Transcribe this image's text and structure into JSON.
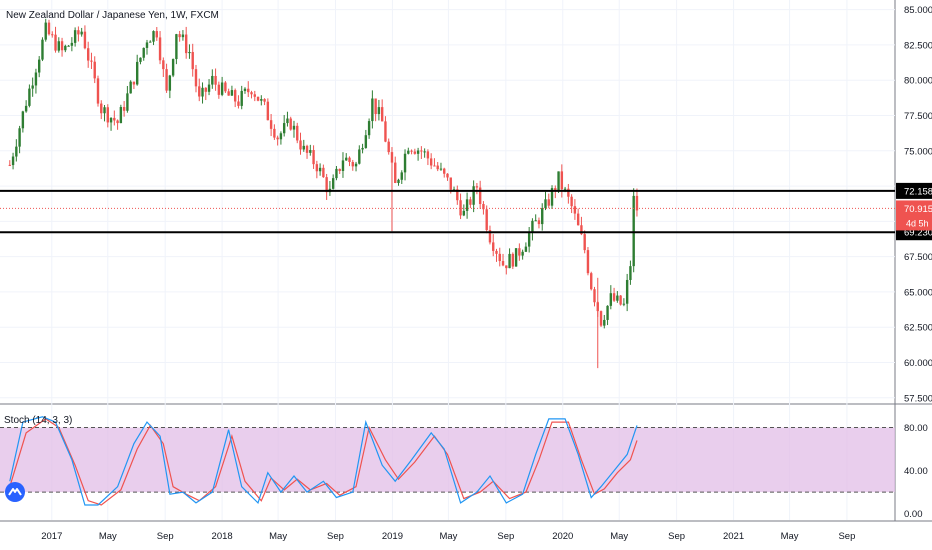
{
  "header": {
    "title": "New Zealand Dollar / Japanese Yen, 1W, FXCM"
  },
  "stoch": {
    "title": "Stoch (14, 3, 3)"
  },
  "chart_data": [
    {
      "type": "candlestick",
      "x_tick_labels": [
        "2017",
        "May",
        "Sep",
        "2018",
        "May",
        "Sep",
        "2019",
        "May",
        "Sep",
        "2020",
        "May",
        "Sep",
        "2021",
        "May",
        "Sep"
      ],
      "y_tick_labels": [
        "57.500",
        "60.000",
        "62.500",
        "65.000",
        "67.500",
        "70.000",
        "72.500",
        "75.000",
        "77.500",
        "80.000",
        "82.500",
        "85.000"
      ],
      "ylim": [
        57.2,
        85.4
      ],
      "x_start": "2016-10",
      "x_end": "2021-12",
      "price_points": [
        [
          "2016-10-03",
          74.0
        ],
        [
          "2016-11-07",
          78.5
        ],
        [
          "2016-12-19",
          83.5
        ],
        [
          "2017-01-23",
          82.0
        ],
        [
          "2017-03-06",
          83.5
        ],
        [
          "2017-04-17",
          78.0
        ],
        [
          "2017-05-22",
          77.0
        ],
        [
          "2017-06-19",
          79.5
        ],
        [
          "2017-07-24",
          83.0
        ],
        [
          "2017-08-14",
          83.5
        ],
        [
          "2017-09-04",
          79.0
        ],
        [
          "2017-09-25",
          83.5
        ],
        [
          "2017-10-23",
          82.0
        ],
        [
          "2017-11-13",
          78.5
        ],
        [
          "2017-12-11",
          80.0
        ],
        [
          "2018-01-08",
          79.0
        ],
        [
          "2018-02-05",
          78.5
        ],
        [
          "2018-03-05",
          79.5
        ],
        [
          "2018-04-02",
          78.0
        ],
        [
          "2018-04-30",
          76.0
        ],
        [
          "2018-05-28",
          77.0
        ],
        [
          "2018-06-25",
          75.0
        ],
        [
          "2018-07-23",
          74.0
        ],
        [
          "2018-08-20",
          72.0
        ],
        [
          "2018-09-17",
          74.5
        ],
        [
          "2018-10-15",
          74.0
        ],
        [
          "2018-11-19",
          78.5
        ],
        [
          "2018-12-10",
          77.0
        ],
        [
          "2019-01-07",
          72.5
        ],
        [
          "2019-02-04",
          75.5
        ],
        [
          "2019-03-04",
          75.0
        ],
        [
          "2019-04-01",
          74.0
        ],
        [
          "2019-05-06",
          72.5
        ],
        [
          "2019-06-03",
          70.5
        ],
        [
          "2019-07-01",
          72.5
        ],
        [
          "2019-07-29",
          69.0
        ],
        [
          "2019-08-26",
          67.0
        ],
        [
          "2019-09-23",
          67.5
        ],
        [
          "2019-10-28",
          69.5
        ],
        [
          "2019-11-25",
          71.0
        ],
        [
          "2019-12-23",
          73.0
        ],
        [
          "2020-01-20",
          71.0
        ],
        [
          "2020-02-17",
          68.0
        ],
        [
          "2020-03-02",
          65.5
        ],
        [
          "2020-03-23",
          63.0
        ],
        [
          "2020-04-13",
          64.5
        ],
        [
          "2020-05-11",
          64.0
        ],
        [
          "2020-05-25",
          67.0
        ],
        [
          "2020-06-01",
          71.5
        ],
        [
          "2020-06-08",
          70.9
        ]
      ],
      "horizontal_levels": [
        {
          "label": "72.158",
          "value": 72.158,
          "color": "#000000"
        },
        {
          "label": "69.230",
          "value": 69.23,
          "color": "#000000"
        }
      ],
      "last_price": {
        "label": "70.915",
        "value": 70.915,
        "color": "#ef5350"
      },
      "countdown": {
        "label": "4d 5h"
      },
      "candle_up_color": "#26a69a",
      "candle_up_color_dark": "#2e7d32",
      "candle_down_color": "#ef5350"
    },
    {
      "type": "line",
      "name": "Stoch (14, 3, 3)",
      "y_tick_labels": [
        "0.00",
        "40.00",
        "80.00"
      ],
      "ylim": [
        -5,
        100
      ],
      "upper_band": 80,
      "lower_band": 20,
      "band_fill_color": "#e1bee7",
      "k_color": "#2196f3",
      "d_color": "#ef5350",
      "k_points": [
        [
          "2016-10-03",
          30
        ],
        [
          "2016-10-31",
          85
        ],
        [
          "2016-12-12",
          90
        ],
        [
          "2017-01-09",
          85
        ],
        [
          "2017-02-13",
          50
        ],
        [
          "2017-03-13",
          8
        ],
        [
          "2017-04-10",
          8
        ],
        [
          "2017-05-22",
          25
        ],
        [
          "2017-06-26",
          65
        ],
        [
          "2017-07-24",
          85
        ],
        [
          "2017-08-21",
          72
        ],
        [
          "2017-09-11",
          18
        ],
        [
          "2017-10-09",
          20
        ],
        [
          "2017-11-06",
          10
        ],
        [
          "2017-12-11",
          20
        ],
        [
          "2018-01-15",
          78
        ],
        [
          "2018-02-12",
          25
        ],
        [
          "2018-03-19",
          10
        ],
        [
          "2018-04-09",
          38
        ],
        [
          "2018-05-07",
          20
        ],
        [
          "2018-06-04",
          35
        ],
        [
          "2018-07-02",
          20
        ],
        [
          "2018-08-06",
          30
        ],
        [
          "2018-09-03",
          15
        ],
        [
          "2018-10-08",
          20
        ],
        [
          "2018-11-05",
          85
        ],
        [
          "2018-12-10",
          45
        ],
        [
          "2019-01-07",
          30
        ],
        [
          "2019-02-11",
          50
        ],
        [
          "2019-03-25",
          75
        ],
        [
          "2019-04-22",
          60
        ],
        [
          "2019-05-27",
          10
        ],
        [
          "2019-07-01",
          20
        ],
        [
          "2019-07-29",
          35
        ],
        [
          "2019-09-02",
          10
        ],
        [
          "2019-10-07",
          18
        ],
        [
          "2019-11-04",
          55
        ],
        [
          "2019-12-02",
          88
        ],
        [
          "2020-01-06",
          88
        ],
        [
          "2020-02-03",
          55
        ],
        [
          "2020-03-02",
          15
        ],
        [
          "2020-03-23",
          25
        ],
        [
          "2020-04-20",
          40
        ],
        [
          "2020-05-18",
          55
        ],
        [
          "2020-06-08",
          82
        ]
      ],
      "d_points": [
        [
          "2016-10-03",
          25
        ],
        [
          "2016-11-07",
          75
        ],
        [
          "2016-12-19",
          88
        ],
        [
          "2017-01-16",
          80
        ],
        [
          "2017-02-20",
          45
        ],
        [
          "2017-03-20",
          12
        ],
        [
          "2017-04-17",
          8
        ],
        [
          "2017-05-29",
          22
        ],
        [
          "2017-07-03",
          60
        ],
        [
          "2017-07-31",
          82
        ],
        [
          "2017-08-28",
          65
        ],
        [
          "2017-09-18",
          25
        ],
        [
          "2017-10-16",
          18
        ],
        [
          "2017-11-13",
          12
        ],
        [
          "2017-12-18",
          25
        ],
        [
          "2018-01-22",
          72
        ],
        [
          "2018-02-19",
          30
        ],
        [
          "2018-03-26",
          12
        ],
        [
          "2018-04-16",
          33
        ],
        [
          "2018-05-14",
          22
        ],
        [
          "2018-06-11",
          32
        ],
        [
          "2018-07-09",
          22
        ],
        [
          "2018-08-13",
          28
        ],
        [
          "2018-09-10",
          17
        ],
        [
          "2018-10-15",
          25
        ],
        [
          "2018-11-12",
          80
        ],
        [
          "2018-12-17",
          50
        ],
        [
          "2019-01-14",
          32
        ],
        [
          "2019-02-18",
          48
        ],
        [
          "2019-04-01",
          72
        ],
        [
          "2019-04-29",
          55
        ],
        [
          "2019-06-03",
          14
        ],
        [
          "2019-07-08",
          20
        ],
        [
          "2019-08-05",
          30
        ],
        [
          "2019-09-09",
          14
        ],
        [
          "2019-10-14",
          20
        ],
        [
          "2019-11-11",
          50
        ],
        [
          "2019-12-09",
          85
        ],
        [
          "2020-01-13",
          85
        ],
        [
          "2020-02-10",
          50
        ],
        [
          "2020-03-09",
          18
        ],
        [
          "2020-03-30",
          23
        ],
        [
          "2020-04-27",
          38
        ],
        [
          "2020-05-25",
          50
        ],
        [
          "2020-06-08",
          68
        ]
      ]
    }
  ],
  "colors": {
    "grid": "#f0f3fa",
    "axis_text": "#131722",
    "separator": "#787b86",
    "logo": "#2962ff"
  },
  "icons": {
    "logo": "tradingview-logo-icon"
  }
}
